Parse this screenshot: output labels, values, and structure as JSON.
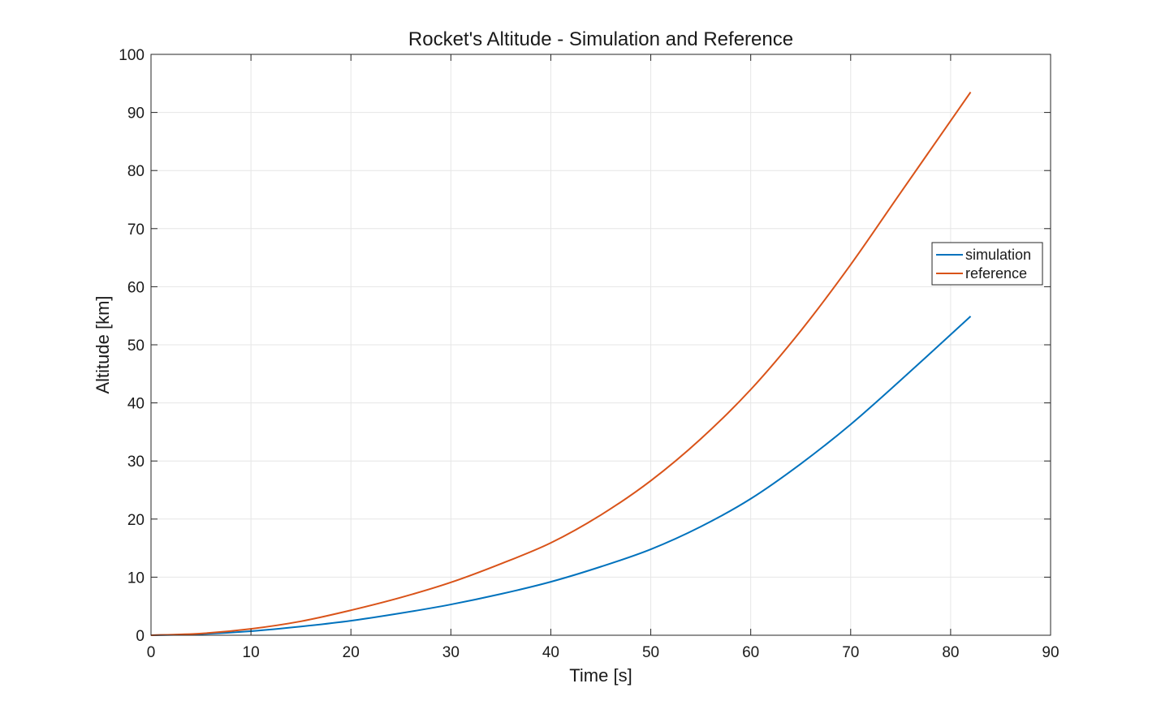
{
  "chart_data": {
    "type": "line",
    "title": "Rocket's Altitude - Simulation and Reference",
    "xlabel": "Time [s]",
    "ylabel": "Altitude [km]",
    "xlim": [
      0,
      90
    ],
    "ylim": [
      0,
      100
    ],
    "xticks": [
      0,
      10,
      20,
      30,
      40,
      50,
      60,
      70,
      80,
      90
    ],
    "yticks": [
      0,
      10,
      20,
      30,
      40,
      50,
      60,
      70,
      80,
      90,
      100
    ],
    "grid": true,
    "legend_position": "right",
    "series": [
      {
        "name": "simulation",
        "color": "#0072BD",
        "x": [
          0,
          5,
          10,
          15,
          20,
          25,
          30,
          35,
          40,
          45,
          50,
          55,
          60,
          65,
          70,
          75,
          82
        ],
        "y": [
          0,
          0.2,
          0.7,
          1.5,
          2.5,
          3.8,
          5.3,
          7.1,
          9.2,
          11.8,
          14.8,
          18.7,
          23.5,
          29.5,
          36.3,
          43.9,
          54.9
        ]
      },
      {
        "name": "reference",
        "color": "#D95319",
        "x": [
          0,
          5,
          10,
          15,
          20,
          25,
          30,
          35,
          40,
          45,
          50,
          55,
          60,
          65,
          70,
          75,
          82
        ],
        "y": [
          0,
          0.3,
          1.1,
          2.4,
          4.3,
          6.5,
          9.1,
          12.3,
          15.9,
          20.7,
          26.6,
          33.8,
          42.3,
          52.4,
          63.8,
          76.2,
          93.5
        ]
      }
    ]
  }
}
